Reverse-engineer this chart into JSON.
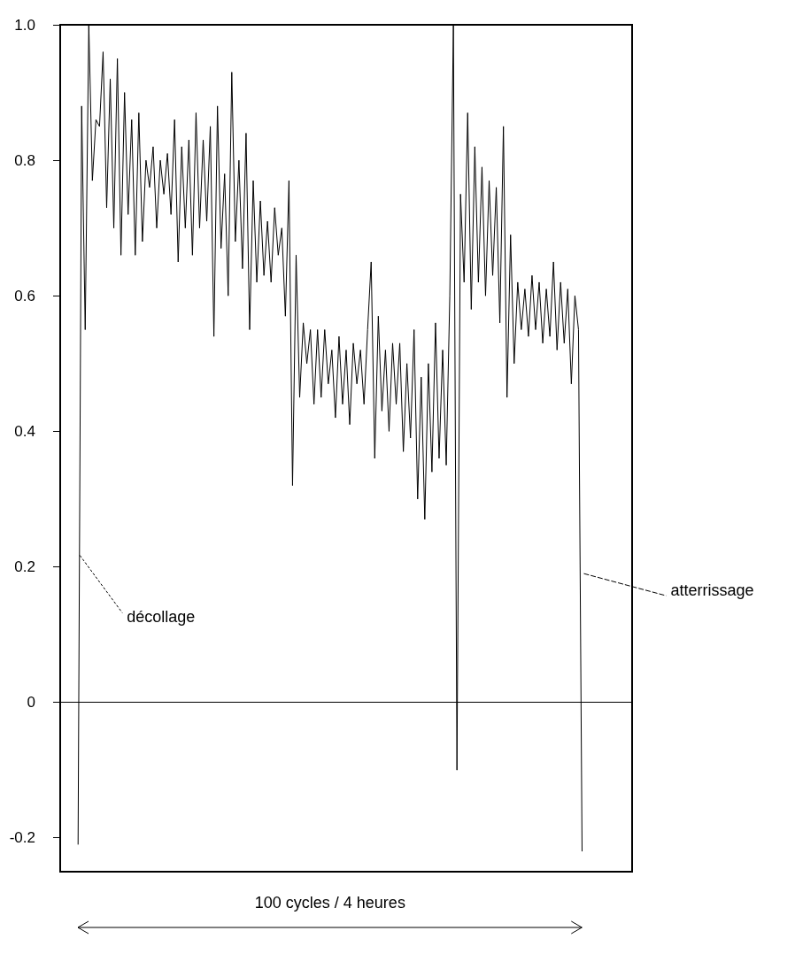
{
  "chart_data": {
    "type": "line",
    "categories": [
      null,
      null,
      null,
      null,
      null,
      null,
      null,
      null,
      null,
      null,
      null,
      null,
      null,
      null,
      null,
      null,
      null,
      null,
      null,
      null,
      null,
      null,
      null,
      null,
      null,
      null,
      null,
      null,
      null,
      null,
      null,
      null,
      null,
      null,
      null,
      null,
      null,
      null,
      null,
      null,
      null,
      null,
      null,
      null,
      null,
      null,
      null,
      null,
      null,
      null,
      null,
      null,
      null,
      null,
      null,
      null,
      null,
      null,
      null,
      null,
      null,
      null,
      null,
      null,
      null,
      null,
      null,
      null,
      null,
      null,
      null,
      null,
      null,
      null,
      null,
      null,
      null,
      null,
      null,
      null,
      null,
      null,
      null,
      null,
      null,
      null,
      null,
      null,
      null,
      null,
      null,
      null,
      null,
      null,
      null,
      null,
      null,
      null,
      null,
      null,
      null,
      null,
      null,
      null,
      null,
      null,
      null,
      null,
      null,
      null,
      null,
      null,
      null,
      null,
      null,
      null,
      null,
      null,
      null,
      null,
      null,
      null,
      null,
      null,
      null,
      null,
      null,
      null,
      null,
      null,
      null,
      null,
      null,
      null,
      null,
      null,
      null,
      null,
      null,
      null,
      null,
      null,
      null,
      null,
      null,
      null,
      null,
      null,
      null,
      null,
      null,
      null,
      null,
      null,
      null,
      null,
      null,
      null,
      null,
      null,
      null
    ],
    "series": [
      {
        "color": "#000000",
        "values": [
          null,
          null,
          null,
          null,
          null,
          -0.21,
          0.88,
          0.55,
          1.0,
          0.77,
          0.86,
          0.85,
          0.96,
          0.73,
          0.92,
          0.7,
          0.95,
          0.66,
          0.9,
          0.72,
          0.86,
          0.66,
          0.87,
          0.68,
          0.8,
          0.76,
          0.82,
          0.7,
          0.8,
          0.75,
          0.81,
          0.72,
          0.86,
          0.65,
          0.82,
          0.7,
          0.83,
          0.66,
          0.87,
          0.7,
          0.83,
          0.71,
          0.85,
          0.54,
          0.88,
          0.67,
          0.78,
          0.6,
          0.93,
          0.68,
          0.8,
          0.64,
          0.84,
          0.55,
          0.77,
          0.62,
          0.74,
          0.63,
          0.71,
          0.62,
          0.73,
          0.66,
          0.7,
          0.57,
          0.77,
          0.32,
          0.66,
          0.45,
          0.56,
          0.5,
          0.55,
          0.44,
          0.55,
          0.45,
          0.55,
          0.47,
          0.52,
          0.42,
          0.54,
          0.44,
          0.52,
          0.41,
          0.53,
          0.47,
          0.52,
          0.44,
          0.55,
          0.65,
          0.36,
          0.57,
          0.43,
          0.52,
          0.4,
          0.53,
          0.44,
          0.53,
          0.37,
          0.5,
          0.39,
          0.55,
          0.3,
          0.48,
          0.27,
          0.5,
          0.34,
          0.56,
          0.36,
          0.52,
          0.35,
          0.6,
          1.0,
          -0.1,
          0.75,
          0.62,
          0.87,
          0.58,
          0.82,
          0.62,
          0.79,
          0.6,
          0.77,
          0.63,
          0.76,
          0.56,
          0.85,
          0.45,
          0.69,
          0.5,
          0.62,
          0.55,
          0.61,
          0.54,
          0.63,
          0.55,
          0.62,
          0.53,
          0.61,
          0.54,
          0.65,
          0.52,
          0.62,
          0.53,
          0.61,
          0.47,
          0.6,
          0.55,
          -0.22,
          null,
          null,
          null,
          null,
          null,
          null,
          null,
          null,
          null,
          null,
          null,
          null,
          null,
          null
        ]
      }
    ],
    "ylim": [
      -0.25,
      1.0
    ],
    "yticks": [
      -0.2,
      0,
      0.2,
      0.4,
      0.6,
      0.8,
      {
        "value": 1.0,
        "label": "1.0"
      }
    ],
    "ref_lines": [
      {
        "axis": "y",
        "value": 0,
        "color": "#000000"
      }
    ],
    "annotations": [
      "décollage",
      "atterrissage",
      "100 cycles / 4 heures"
    ],
    "grid": false,
    "line_style": "solid",
    "tick_labels": "y"
  }
}
